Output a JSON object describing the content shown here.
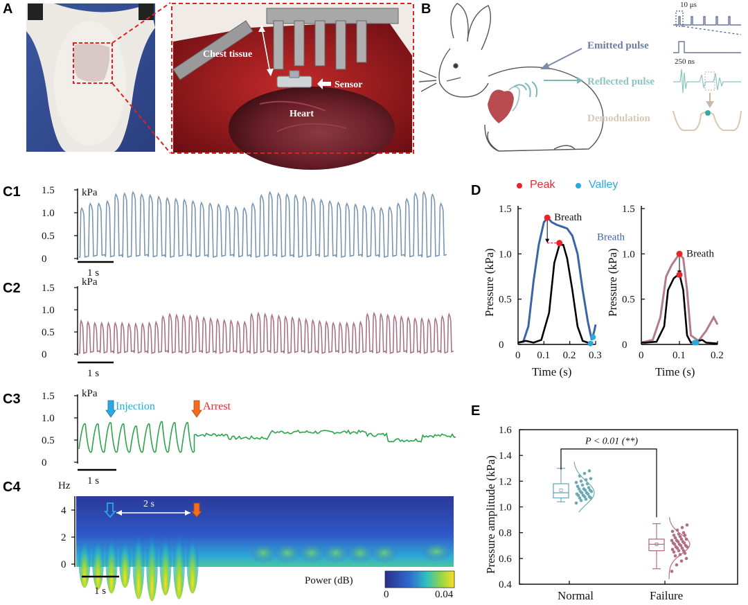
{
  "panel_labels": {
    "a": "A",
    "b": "B",
    "c1": "C1",
    "c2": "C2",
    "c3": "C3",
    "c4": "C4",
    "d": "D",
    "e": "E"
  },
  "panel_a": {
    "chest_tissue": "Chest tissue",
    "sensor": "Sensor",
    "heart": "Heart"
  },
  "panel_b": {
    "emitted_pulse": "Emitted pulse",
    "reflected_pulse": "Reflected pulse",
    "demodulation": "Demodulation",
    "t_10us": "10 μs",
    "t_250ns": "250 ns"
  },
  "panel_c": {
    "c1": {
      "unit": "kPa",
      "ticks": [
        "1.5",
        "1.0",
        "0.5",
        "0"
      ],
      "scalebar": "1 s",
      "color": "#7a96b0",
      "tops": [
        1.1,
        1.2,
        1.2,
        1.25,
        1.4,
        1.42,
        1.45,
        1.4,
        1.38,
        1.35,
        1.32,
        1.3,
        1.28,
        1.25,
        1.22,
        1.2,
        1.18,
        1.15,
        1.12,
        1.1,
        1.2,
        1.38,
        1.45,
        1.42,
        1.4,
        1.38,
        1.35,
        1.3,
        1.28,
        1.25,
        1.22,
        1.2,
        1.18,
        1.15,
        1.12,
        1.1,
        1.12,
        1.2,
        1.3,
        1.42,
        1.45,
        1.4,
        1.2
      ]
    },
    "c2": {
      "unit": "kPa",
      "ticks": [
        "1.5",
        "1.0",
        "0.5",
        "0"
      ],
      "scalebar": "1 s",
      "color": "#a87485",
      "tops": [
        0.75,
        0.72,
        0.7,
        0.7,
        0.7,
        0.7,
        0.7,
        0.68,
        0.68,
        0.68,
        0.7,
        0.72,
        0.85,
        0.9,
        0.88,
        0.87,
        0.86,
        0.85,
        0.82,
        0.8,
        0.78,
        0.76,
        0.75,
        0.73,
        0.72,
        0.9,
        0.92,
        0.9,
        0.88,
        0.86,
        0.84,
        0.82,
        0.8,
        0.78,
        0.76,
        0.74,
        0.72,
        0.7,
        0.7,
        0.7,
        0.7,
        0.72,
        0.9,
        0.92,
        0.9,
        0.88,
        0.86,
        0.84,
        0.82,
        0.8,
        0.8,
        0.78,
        0.8,
        0.85,
        0.9
      ]
    },
    "c3": {
      "unit": "kPa",
      "ticks": [
        "1.5",
        "1.0",
        "0.5",
        "0"
      ],
      "scalebar": "1 s",
      "injection": "Injection",
      "arrest": "Arrest",
      "color": "#2aa34a",
      "tops": [
        0.95,
        0.95,
        0.98,
        0.95,
        0.9,
        0.95,
        1.0,
        0.98,
        0.98
      ]
    },
    "c4": {
      "unit": "Hz",
      "ticks": [
        "4",
        "2",
        "0"
      ],
      "interval": "2 s",
      "scalebar": "1 s",
      "power_label": "Power (dB)",
      "cbar_min": "0",
      "cbar_max": "0.04"
    }
  },
  "panel_d": {
    "legend_peak": "Peak",
    "legend_valley": "Valley",
    "peak_color": "#e8262a",
    "valley_color": "#29a9e0",
    "left": {
      "breath": "Breath",
      "breath_series": "Breath",
      "ylabel": "Pressure (kPa)",
      "xlabel": "Time (s)",
      "xticks": [
        "0",
        "0.1",
        "0.2",
        "0.3"
      ],
      "yticks": [
        "0",
        "0.5",
        "1.0",
        "1.5"
      ],
      "color": "#3b64a8"
    },
    "right": {
      "breath": "Breath",
      "ylabel": "Pressure (kPa)",
      "xlabel": "Time (s)",
      "xticks": [
        "0",
        "0.1",
        "0.2"
      ],
      "yticks": [
        "0",
        "0.5",
        "1.0",
        "1.5"
      ],
      "color": "#b27c8c"
    }
  },
  "panel_e": {
    "ylabel": "Pressure amplitude (kPa)",
    "yticks": [
      "1.6",
      "1.4",
      "1.2",
      "1.0",
      "0.8",
      "0.6",
      "0.4"
    ],
    "significance": "P < 0.01 (**)",
    "chart_data": {
      "type": "box",
      "categories": [
        "Normal",
        "Failure"
      ],
      "ylabel": "Pressure amplitude (kPa)",
      "ylim": [
        0.4,
        1.6
      ],
      "series": [
        {
          "name": "Normal",
          "min": 1.04,
          "q1": 1.07,
          "median": 1.11,
          "mean": 1.13,
          "q3": 1.18,
          "max": 1.3,
          "color": "#6aaab8",
          "points": [
            1.03,
            1.05,
            1.06,
            1.07,
            1.07,
            1.08,
            1.08,
            1.09,
            1.09,
            1.1,
            1.1,
            1.11,
            1.11,
            1.12,
            1.12,
            1.13,
            1.13,
            1.14,
            1.14,
            1.15,
            1.16,
            1.17,
            1.18,
            1.19,
            1.2,
            1.21,
            1.22,
            1.24,
            1.26,
            1.28
          ]
        },
        {
          "name": "Failure",
          "min": 0.52,
          "q1": 0.66,
          "median": 0.71,
          "mean": 0.71,
          "q3": 0.75,
          "max": 0.87,
          "color": "#b26e84",
          "points": [
            0.5,
            0.55,
            0.58,
            0.6,
            0.62,
            0.63,
            0.64,
            0.65,
            0.66,
            0.66,
            0.67,
            0.68,
            0.68,
            0.69,
            0.69,
            0.7,
            0.7,
            0.71,
            0.71,
            0.72,
            0.72,
            0.73,
            0.73,
            0.74,
            0.74,
            0.75,
            0.75,
            0.76,
            0.77,
            0.78,
            0.78,
            0.79,
            0.8,
            0.81,
            0.82,
            0.84,
            0.86
          ]
        }
      ]
    }
  }
}
